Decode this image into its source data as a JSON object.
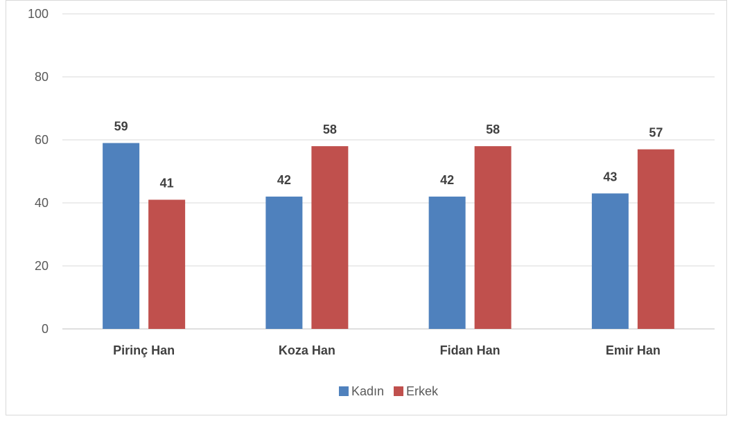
{
  "chart_data": {
    "type": "bar",
    "categories": [
      "Pirinç Han",
      "Koza Han",
      "Fidan Han",
      "Emir Han"
    ],
    "series": [
      {
        "name": "Kadın",
        "values": [
          59,
          42,
          42,
          43
        ],
        "color": "#4f81bd"
      },
      {
        "name": "Erkek",
        "values": [
          41,
          58,
          58,
          57
        ],
        "color": "#c0504d"
      }
    ],
    "ylim": [
      0,
      100
    ],
    "yticks": [
      0,
      20,
      40,
      60,
      80,
      100
    ],
    "grid": true,
    "legend_position": "bottom",
    "data_labels": true
  }
}
